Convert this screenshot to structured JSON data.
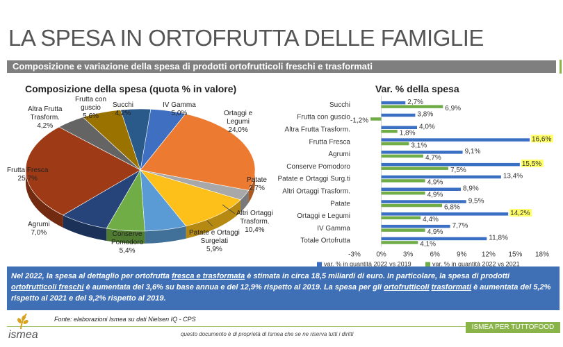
{
  "header": {
    "title": "LA SPESA IN ORTOFRUTTA DELLE FAMIGLIE",
    "subtitle": "Composizione e variazione della spesa di prodotti ortofrutticoli freschi e trasformati"
  },
  "colors": {
    "blue_series": "#3a6fc4",
    "green_series": "#70ad47",
    "highlight": "#ffff66",
    "description_bg": "#3f6fb5",
    "accent_green": "#8ab34a"
  },
  "chart_data": [
    {
      "type": "pie",
      "title": "Composizione della spesa (quota % in valore)",
      "slices": [
        {
          "name": "IV Gamma",
          "label_lines": [
            "IV Gamma"
          ],
          "value_label": "5,0%",
          "value": 5.0,
          "color": "#3f6fc0"
        },
        {
          "name": "Ortaggi e Legumi",
          "label_lines": [
            "Ortaggi e",
            "Legumi"
          ],
          "value_label": "24,0%",
          "value": 24.0,
          "color": "#ec7b31"
        },
        {
          "name": "Patate",
          "label_lines": [
            "Patate"
          ],
          "value_label": "2,7%",
          "value": 2.7,
          "color": "#a8a8a8"
        },
        {
          "name": "Altri Ortaggi Trasform.",
          "label_lines": [
            "Altri Ortaggi",
            "Trasform."
          ],
          "value_label": "10,4%",
          "value": 10.4,
          "color": "#fdbf19"
        },
        {
          "name": "Patate e Ortaggi Surgelati",
          "label_lines": [
            "Patate e Ortaggi",
            "Surgelati"
          ],
          "value_label": "5,9%",
          "value": 5.9,
          "color": "#5a9bd5"
        },
        {
          "name": "Conserve Pomodoro",
          "label_lines": [
            "Conserve",
            "Pomodoro"
          ],
          "value_label": "5,4%",
          "value": 5.4,
          "color": "#70ad47"
        },
        {
          "name": "Agrumi",
          "label_lines": [
            "Agrumi"
          ],
          "value_label": "7,0%",
          "value": 7.0,
          "color": "#264479"
        },
        {
          "name": "Frutta Fresca",
          "label_lines": [
            "Frutta Fresca"
          ],
          "value_label": "25,7%",
          "value": 25.7,
          "color": "#9e3b16"
        },
        {
          "name": "Altra Frutta Trasform.",
          "label_lines": [
            "Altra Frutta",
            "Trasform."
          ],
          "value_label": "4,2%",
          "value": 4.2,
          "color": "#646464"
        },
        {
          "name": "Frutta con guscio",
          "label_lines": [
            "Frutta con",
            "guscio"
          ],
          "value_label": "5,6%",
          "value": 5.6,
          "color": "#9a7200"
        },
        {
          "name": "Succhi",
          "label_lines": [
            "Succhi"
          ],
          "value_label": "4,2%",
          "value": 4.2,
          "color": "#2a5a8a"
        }
      ]
    },
    {
      "type": "bar",
      "orientation": "horizontal",
      "title": "Var. % della spesa",
      "categories": [
        "Succhi",
        "Frutta con guscio",
        "Altra Frutta Trasform.",
        "Frutta Fresca",
        "Agrumi",
        "Conserve Pomodoro",
        "Patate e Ortaggi Surg.ti",
        "Altri Ortaggi Trasform.",
        "Patate",
        "Ortaggi e Legumi",
        "IV Gamma",
        "Totale Ortofrutta"
      ],
      "series": [
        {
          "name": "var. % in quantità 2022 vs 2019",
          "values": [
            2.7,
            3.8,
            4.0,
            16.6,
            9.1,
            15.5,
            13.4,
            8.9,
            9.5,
            14.2,
            7.7,
            11.8
          ],
          "labels": [
            "2,7%",
            "3,8%",
            "4,0%",
            "16,6%",
            "9,1%",
            "15,5%",
            "13,4%",
            "8,9%",
            "9,5%",
            "14,2%",
            "7,7%",
            "11,8%"
          ]
        },
        {
          "name": "var. % in quantità 2022 vs 2021",
          "values": [
            6.9,
            -1.2,
            1.8,
            3.1,
            4.7,
            7.5,
            4.9,
            4.9,
            6.8,
            4.4,
            4.9,
            4.1
          ],
          "labels": [
            "6,9%",
            "-1,2%",
            "1,8%",
            "3,1%",
            "4,7%",
            "7,5%",
            "4,9%",
            "4,9%",
            "6,8%",
            "4,4%",
            "4,9%",
            "4,1%"
          ]
        }
      ],
      "highlighted_labels": [
        "16,6%",
        "15,5%",
        "14,2%"
      ],
      "xlim": [
        -3,
        18
      ],
      "xticks": [
        -3,
        0,
        3,
        6,
        9,
        12,
        15,
        18
      ],
      "xtick_labels": [
        "-3%",
        "0%",
        "3%",
        "6%",
        "9%",
        "12%",
        "15%",
        "18%"
      ],
      "legend": "bottom"
    }
  ],
  "description": {
    "parts": [
      {
        "t": "Nel 2022, la spesa al dettaglio per ortofrutta ",
        "u": false
      },
      {
        "t": "fresca e trasformata",
        "u": true
      },
      {
        "t": " è stimata in circa 18,5 miliardi di euro. In particolare, la spesa di prodotti ",
        "u": false
      },
      {
        "t": "ortofrutticoli freschi",
        "u": true
      },
      {
        "t": " è aumentata del 3,6%  su base annua e del 12,9% rispetto al 2019. La spesa per gli ",
        "u": false
      },
      {
        "t": "ortofrutticoli",
        "u": true
      },
      {
        "t": " ",
        "u": false
      },
      {
        "t": "trasformati",
        "u": true
      },
      {
        "t": " è aumentata del 5,2% rispetto al 2021 e del 9,2% rispetto al 2019.",
        "u": false
      }
    ]
  },
  "footer": {
    "source": "Fonte: elaborazioni Ismea su dati Nielsen IQ - CPS",
    "ownership": "questo documento è di proprietà di Ismea che se ne riserva tutti i diritti",
    "event": "ISMEA PER TUTTOFOOD",
    "logo": "ismea"
  }
}
